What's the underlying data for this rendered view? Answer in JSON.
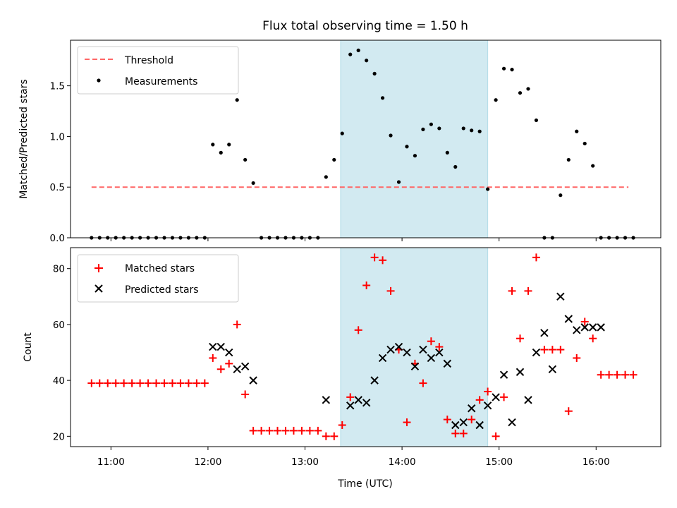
{
  "title": "Flux total observing time = 1.50 h",
  "xlabel": "Time (UTC)",
  "colors": {
    "threshold": "#ff6666",
    "matched": "#ff0000",
    "predicted": "#000000",
    "measurement": "#000000",
    "shade": "#add8e6"
  },
  "chart_data": [
    {
      "type": "scatter",
      "ylabel": "Matched/Predicted stars",
      "xlim": [
        "10:35",
        "16:40"
      ],
      "ylim": [
        0,
        1.95
      ],
      "x_ticks": [
        "11:00",
        "12:00",
        "13:00",
        "14:00",
        "15:00",
        "16:00"
      ],
      "y_ticks": [
        "0.0",
        "0.5",
        "1.0",
        "1.5"
      ],
      "y_tick_values": [
        0,
        0.5,
        1.0,
        1.5
      ],
      "shaded_span": [
        "13:22",
        "14:53"
      ],
      "legend": [
        "Threshold",
        "Measurements"
      ],
      "legend_position": "upper-left",
      "threshold": {
        "name": "Threshold",
        "y": 0.5,
        "x_range": [
          "10:48",
          "16:20"
        ]
      },
      "series": [
        {
          "name": "Measurements",
          "x": [
            "10:48",
            "10:53",
            "10:58",
            "11:03",
            "11:08",
            "11:13",
            "11:18",
            "11:23",
            "11:28",
            "11:33",
            "11:38",
            "11:43",
            "11:48",
            "11:53",
            "11:58",
            "12:03",
            "12:08",
            "12:13",
            "12:18",
            "12:23",
            "12:28",
            "12:33",
            "12:38",
            "12:43",
            "12:48",
            "12:53",
            "12:58",
            "13:03",
            "13:08",
            "13:13",
            "13:18",
            "13:23",
            "13:28",
            "13:33",
            "13:38",
            "13:43",
            "13:48",
            "13:53",
            "13:58",
            "14:03",
            "14:08",
            "14:13",
            "14:18",
            "14:23",
            "14:28",
            "14:33",
            "14:38",
            "14:43",
            "14:48",
            "14:53",
            "14:58",
            "15:03",
            "15:08",
            "15:13",
            "15:18",
            "15:23",
            "15:28",
            "15:33",
            "15:38",
            "15:43",
            "15:48",
            "15:53",
            "15:58",
            "16:03",
            "16:08",
            "16:13",
            "16:18",
            "16:23"
          ],
          "y": [
            0,
            0,
            0,
            0,
            0,
            0,
            0,
            0,
            0,
            0,
            0,
            0,
            0,
            0,
            0,
            0.92,
            0.84,
            0.92,
            1.36,
            0.77,
            0.54,
            0,
            0,
            0,
            0,
            0,
            0,
            0,
            0,
            0.6,
            0.77,
            1.03,
            1.81,
            1.85,
            1.75,
            1.62,
            1.38,
            1.01,
            0.55,
            0.9,
            0.81,
            1.07,
            1.12,
            1.08,
            0.84,
            0.7,
            1.08,
            1.06,
            1.05,
            0.48,
            1.36,
            1.67,
            1.66,
            1.43,
            1.47,
            1.16,
            0,
            0,
            0.42,
            0.77,
            1.05,
            0.93,
            0.71,
            0,
            0,
            0,
            0,
            0
          ]
        }
      ]
    },
    {
      "type": "scatter",
      "ylabel": "Count",
      "xlim": [
        "10:35",
        "16:40"
      ],
      "ylim": [
        16.3,
        87.5
      ],
      "x_ticks": [
        "11:00",
        "12:00",
        "13:00",
        "14:00",
        "15:00",
        "16:00"
      ],
      "y_ticks": [
        "20",
        "40",
        "60",
        "80"
      ],
      "y_tick_values": [
        20,
        40,
        60,
        80
      ],
      "shaded_span": [
        "13:22",
        "14:53"
      ],
      "legend": [
        "Matched stars",
        "Predicted stars"
      ],
      "legend_position": "upper-left",
      "series": [
        {
          "name": "Matched stars",
          "marker": "plus",
          "x": [
            "10:48",
            "10:53",
            "10:58",
            "11:03",
            "11:08",
            "11:13",
            "11:18",
            "11:23",
            "11:28",
            "11:33",
            "11:38",
            "11:43",
            "11:48",
            "11:53",
            "11:58",
            "12:03",
            "12:08",
            "12:13",
            "12:18",
            "12:23",
            "12:28",
            "12:33",
            "12:38",
            "12:43",
            "12:48",
            "12:53",
            "12:58",
            "13:03",
            "13:08",
            "13:13",
            "13:18",
            "13:23",
            "13:28",
            "13:33",
            "13:38",
            "13:43",
            "13:48",
            "13:53",
            "13:58",
            "14:03",
            "14:08",
            "14:13",
            "14:18",
            "14:23",
            "14:28",
            "14:33",
            "14:38",
            "14:43",
            "14:48",
            "14:53",
            "14:58",
            "15:03",
            "15:08",
            "15:13",
            "15:18",
            "15:23",
            "15:28",
            "15:33",
            "15:38",
            "15:43",
            "15:48",
            "15:53",
            "15:58",
            "16:03",
            "16:08",
            "16:13",
            "16:18",
            "16:23"
          ],
          "y": [
            39,
            39,
            39,
            39,
            39,
            39,
            39,
            39,
            39,
            39,
            39,
            39,
            39,
            39,
            39,
            48,
            44,
            46,
            60,
            35,
            22,
            22,
            22,
            22,
            22,
            22,
            22,
            22,
            22,
            20,
            20,
            24,
            34,
            58,
            74,
            84,
            83,
            72,
            51,
            25,
            46,
            39,
            54,
            52,
            26,
            21,
            21,
            26,
            33,
            36,
            20,
            34,
            72,
            55,
            72,
            84,
            51,
            51,
            51,
            29,
            48,
            61,
            55,
            42,
            42,
            42,
            42,
            42
          ]
        },
        {
          "name": "Predicted stars",
          "marker": "x",
          "x": [
            "12:03",
            "12:08",
            "12:13",
            "12:18",
            "12:23",
            "12:28",
            "13:13",
            "13:28",
            "13:33",
            "13:38",
            "13:43",
            "13:48",
            "13:53",
            "13:58",
            "14:03",
            "14:08",
            "14:13",
            "14:18",
            "14:23",
            "14:28",
            "14:33",
            "14:38",
            "14:43",
            "14:48",
            "14:53",
            "14:58",
            "15:03",
            "15:08",
            "15:13",
            "15:18",
            "15:23",
            "15:28",
            "15:33",
            "15:38",
            "15:43",
            "15:48",
            "15:53",
            "15:58",
            "16:03"
          ],
          "y": [
            52,
            52,
            50,
            44,
            45,
            40,
            33,
            31,
            33,
            32,
            40,
            48,
            51,
            52,
            50,
            45,
            51,
            48,
            50,
            46,
            24,
            25,
            30,
            24,
            31,
            34,
            42,
            25,
            43,
            33,
            50,
            57,
            44,
            70,
            62,
            58,
            59,
            59,
            59
          ]
        }
      ]
    }
  ]
}
